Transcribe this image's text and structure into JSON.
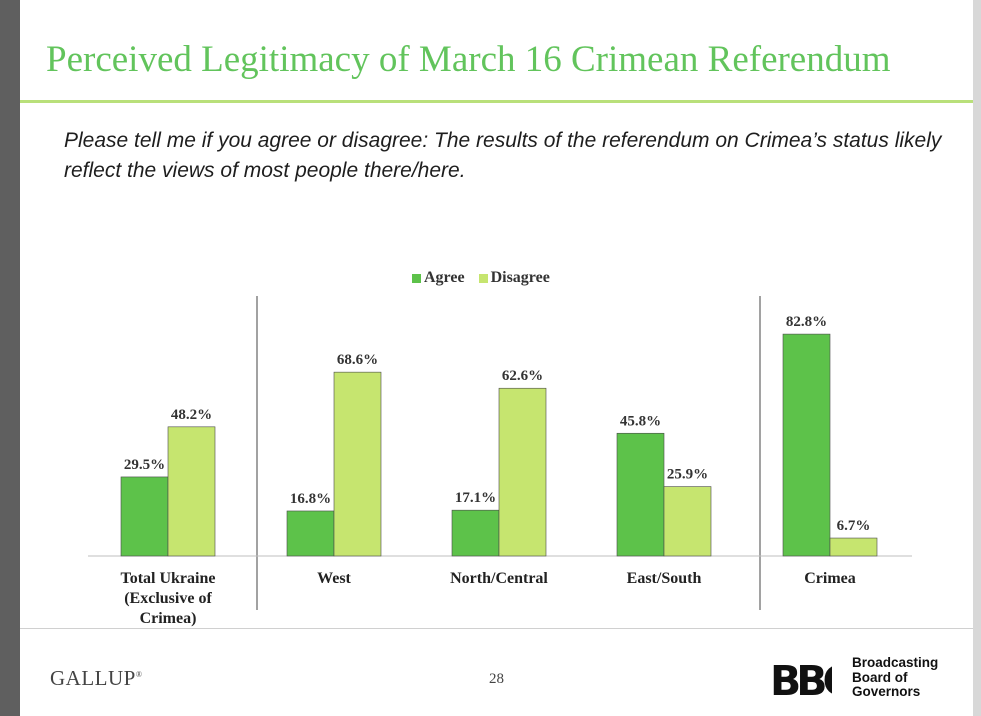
{
  "title": "Perceived Legitimacy of March 16 Crimean Referendum",
  "question": "Please tell me if you agree or disagree: The results of the referendum on Crimea’s status likely reflect the views of most people there/here.",
  "legend": [
    "Agree",
    "Disagree"
  ],
  "colors": {
    "agree": "#5dc24a",
    "disagree": "#c6e56f",
    "title": "#62c45c"
  },
  "chart_data": {
    "type": "bar",
    "title": "",
    "categories": [
      [
        "Total Ukraine",
        "(Exclusive of",
        "Crimea)"
      ],
      [
        "West"
      ],
      [
        "North/Central"
      ],
      [
        "East/South"
      ],
      [
        "Crimea"
      ]
    ],
    "series": [
      {
        "name": "Agree",
        "values": [
          29.5,
          16.8,
          17.1,
          45.8,
          82.8
        ],
        "labels": [
          "29.5%",
          "16.8%",
          "17.1%",
          "45.8%",
          "82.8%"
        ]
      },
      {
        "name": "Disagree",
        "values": [
          48.2,
          68.6,
          62.6,
          25.9,
          6.7
        ],
        "labels": [
          "48.2%",
          "68.6%",
          "62.6%",
          "25.9%",
          "6.7%"
        ]
      }
    ],
    "ylim": [
      0,
      100
    ],
    "grid": false,
    "legend_position": "top-center"
  },
  "footer": {
    "gallup": "GALLUP",
    "gallup_mark": "®",
    "page_number": "28",
    "bbg_logo": "BBG",
    "bbg_lines": [
      "Broadcasting",
      "Board of",
      "Governors"
    ]
  }
}
